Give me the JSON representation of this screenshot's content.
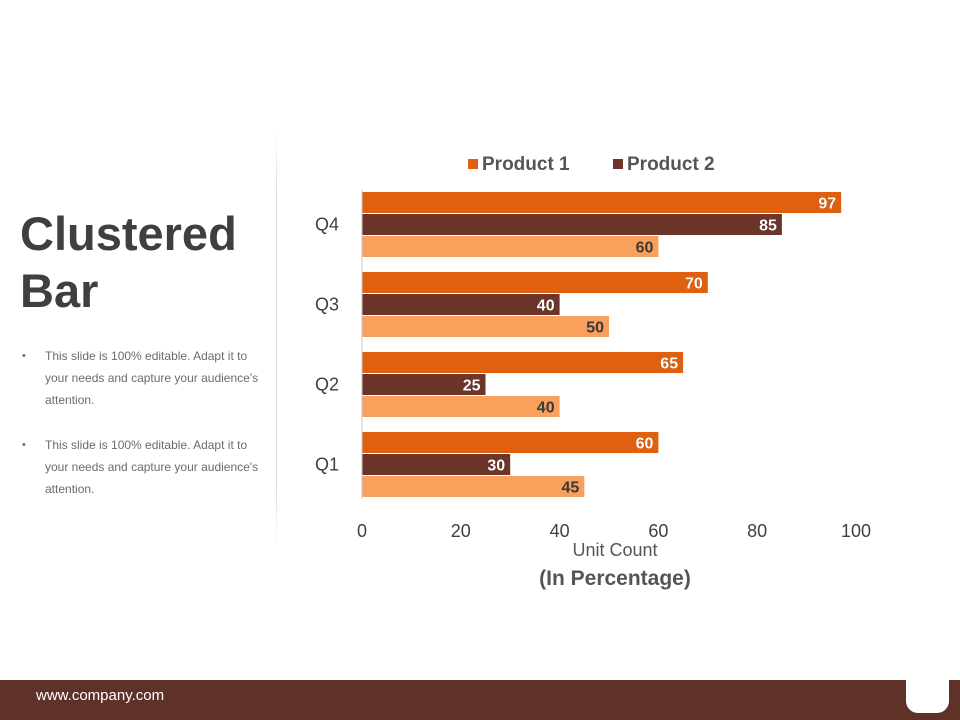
{
  "slide": {
    "title": "Clustered Bar",
    "bullets": [
      "This slide is 100% editable. Adapt it to your needs and capture your audience's attention.",
      "This slide is 100% editable. Adapt it to your needs and capture your audience's attention."
    ],
    "footer_url": "www.company.com"
  },
  "colors": {
    "product1": "#e0600f",
    "product2": "#6b3529",
    "series3": "#f9a05c"
  },
  "chart_data": {
    "type": "bar",
    "orientation": "horizontal",
    "categories": [
      "Q4",
      "Q3",
      "Q2",
      "Q1"
    ],
    "series": [
      {
        "name": "Product 1",
        "values": [
          97,
          70,
          65,
          60
        ],
        "in_legend": true
      },
      {
        "name": "Product 2",
        "values": [
          85,
          40,
          25,
          30
        ],
        "in_legend": true
      },
      {
        "name": "",
        "values": [
          60,
          50,
          40,
          45
        ],
        "in_legend": false
      }
    ],
    "xlabel": "Unit Count",
    "xlabel_sub": "(In Percentage)",
    "xlim": [
      0,
      100
    ],
    "xticks": [
      0,
      20,
      40,
      60,
      80,
      100
    ],
    "legend": "top",
    "grid": false
  }
}
